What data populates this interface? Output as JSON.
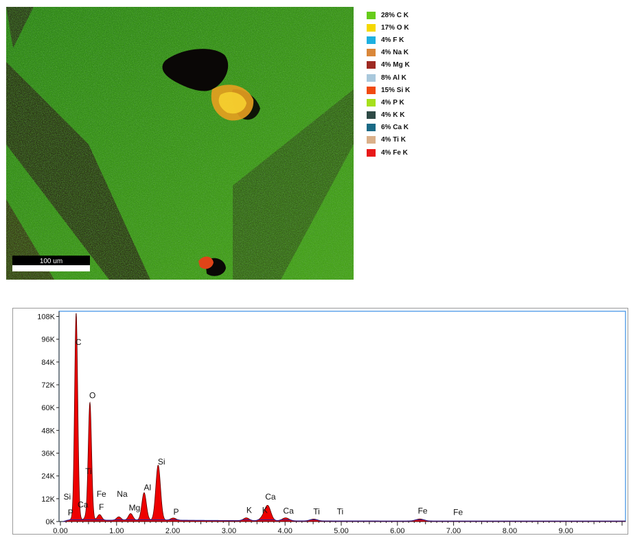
{
  "scale_bar": {
    "label": "100 um"
  },
  "legend": [
    {
      "pct": "28%",
      "element": "C K",
      "color": "#66cc1a"
    },
    {
      "pct": "17%",
      "element": "O K",
      "color": "#f5d800"
    },
    {
      "pct": "4%",
      "element": "F K",
      "color": "#1eb0e0"
    },
    {
      "pct": "4%",
      "element": "Na K",
      "color": "#d9873a"
    },
    {
      "pct": "4%",
      "element": "Mg K",
      "color": "#9e2a22"
    },
    {
      "pct": "8%",
      "element": "Al K",
      "color": "#a9c8dc"
    },
    {
      "pct": "15%",
      "element": "Si K",
      "color": "#f04a10"
    },
    {
      "pct": "4%",
      "element": "P K",
      "color": "#a6e01c"
    },
    {
      "pct": "4%",
      "element": "K K",
      "color": "#2e4a46"
    },
    {
      "pct": "6%",
      "element": "Ca K",
      "color": "#1a6a86"
    },
    {
      "pct": "4%",
      "element": "Ti K",
      "color": "#dab08a"
    },
    {
      "pct": "4%",
      "element": "Fe K",
      "color": "#e81818"
    }
  ],
  "chart_data": {
    "type": "area",
    "x_ticks": [
      "0.00",
      "1.00",
      "2.00",
      "3.00",
      "4.00",
      "5.00",
      "6.00",
      "7.00",
      "8.00",
      "9.00"
    ],
    "y_ticks": [
      "0K",
      "12K",
      "24K",
      "36K",
      "48K",
      "60K",
      "72K",
      "84K",
      "96K",
      "108K"
    ],
    "xlim": [
      0,
      10.0
    ],
    "ylim": [
      0,
      110000
    ],
    "fill_color": "#ee0000",
    "peaks": [
      {
        "e": 0.19,
        "counts": 500,
        "w": 0.03
      },
      {
        "e": 0.28,
        "counts": 109000,
        "w": 0.028
      },
      {
        "e": 0.34,
        "counts": 1200,
        "w": 0.03
      },
      {
        "e": 0.45,
        "counts": 1500,
        "w": 0.03
      },
      {
        "e": 0.525,
        "counts": 62000,
        "w": 0.03
      },
      {
        "e": 0.68,
        "counts": 1500,
        "w": 0.035
      },
      {
        "e": 0.71,
        "counts": 1800,
        "w": 0.035
      },
      {
        "e": 1.04,
        "counts": 1800,
        "w": 0.04
      },
      {
        "e": 1.25,
        "counts": 3500,
        "w": 0.04
      },
      {
        "e": 1.49,
        "counts": 14500,
        "w": 0.04
      },
      {
        "e": 1.74,
        "counts": 29000,
        "w": 0.042
      },
      {
        "e": 2.01,
        "counts": 1200,
        "w": 0.05
      },
      {
        "e": 3.31,
        "counts": 1500,
        "w": 0.05
      },
      {
        "e": 3.59,
        "counts": 1200,
        "w": 0.05
      },
      {
        "e": 3.69,
        "counts": 8000,
        "w": 0.055
      },
      {
        "e": 4.01,
        "counts": 1600,
        "w": 0.06
      },
      {
        "e": 4.51,
        "counts": 1000,
        "w": 0.06
      },
      {
        "e": 6.4,
        "counts": 1100,
        "w": 0.07
      }
    ],
    "labels": [
      {
        "text": "C",
        "e": 0.32,
        "counts": 93000
      },
      {
        "text": "O",
        "e": 0.57,
        "counts": 65000
      },
      {
        "text": "Ti",
        "e": 0.5,
        "counts": 25000
      },
      {
        "text": "Si",
        "e": 0.12,
        "counts": 11500
      },
      {
        "text": "P",
        "e": 0.18,
        "counts": 3200
      },
      {
        "text": "Ca",
        "e": 0.4,
        "counts": 7500
      },
      {
        "text": "Fe",
        "e": 0.73,
        "counts": 13000
      },
      {
        "text": "F",
        "e": 0.73,
        "counts": 6200
      },
      {
        "text": "Na",
        "e": 1.1,
        "counts": 13000
      },
      {
        "text": "Mg",
        "e": 1.32,
        "counts": 5800
      },
      {
        "text": "Al",
        "e": 1.55,
        "counts": 16500
      },
      {
        "text": "Si",
        "e": 1.8,
        "counts": 30000
      },
      {
        "text": "P",
        "e": 2.06,
        "counts": 3600
      },
      {
        "text": "K",
        "e": 3.36,
        "counts": 4500
      },
      {
        "text": "K",
        "e": 3.64,
        "counts": 4500
      },
      {
        "text": "Ca",
        "e": 3.74,
        "counts": 11500
      },
      {
        "text": "Ca",
        "e": 4.06,
        "counts": 4200
      },
      {
        "text": "Ti",
        "e": 4.56,
        "counts": 3800
      },
      {
        "text": "Ti",
        "e": 4.98,
        "counts": 3800
      },
      {
        "text": "Fe",
        "e": 6.45,
        "counts": 4200
      },
      {
        "text": "Fe",
        "e": 7.08,
        "counts": 3500
      }
    ]
  }
}
